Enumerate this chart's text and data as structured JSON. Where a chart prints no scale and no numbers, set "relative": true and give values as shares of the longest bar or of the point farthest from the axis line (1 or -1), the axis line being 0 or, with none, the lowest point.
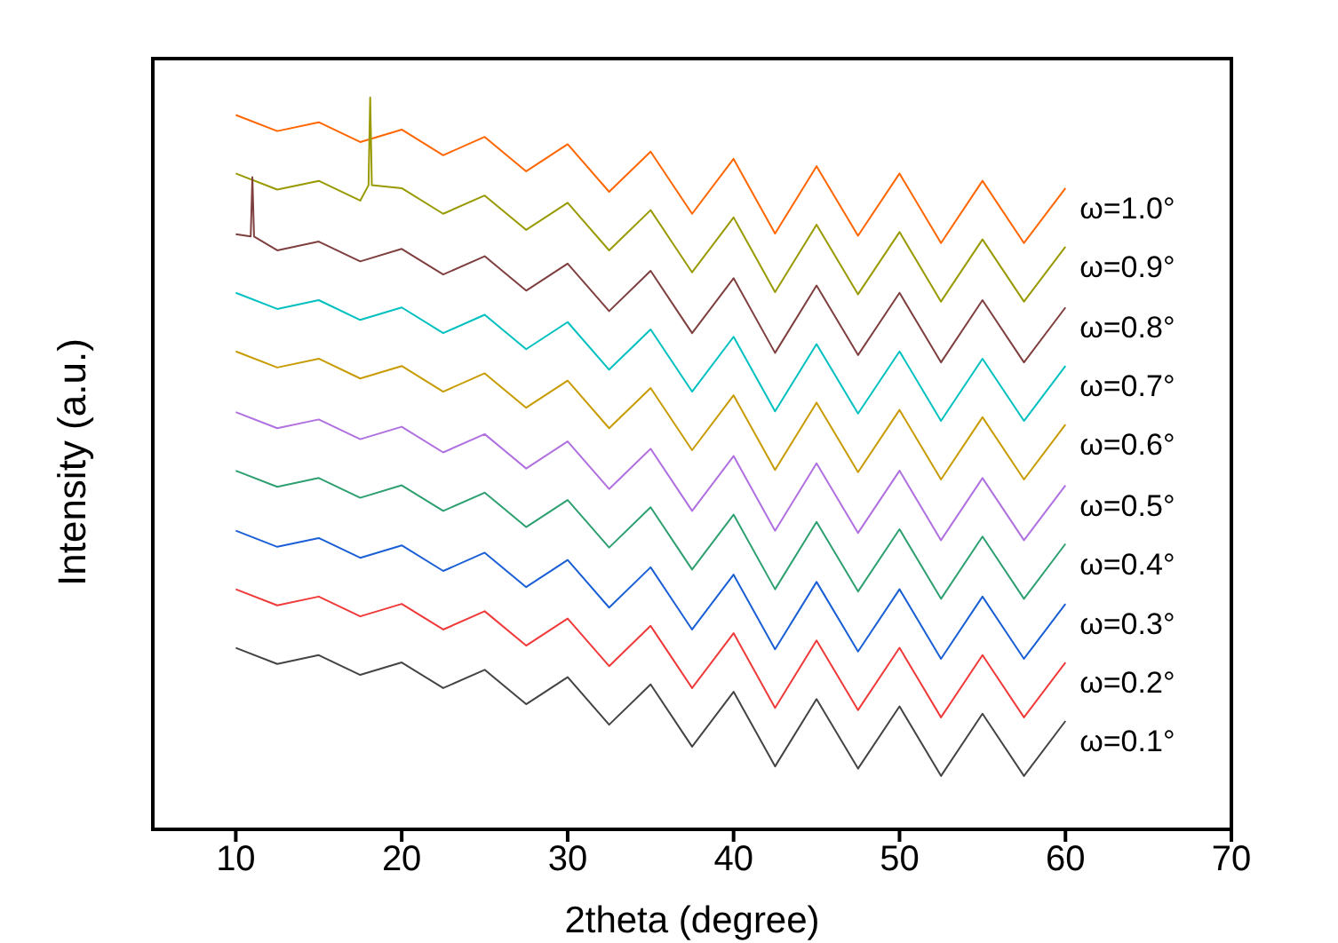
{
  "chart_data": {
    "type": "line",
    "xlabel": "2theta (degree)",
    "ylabel": "Intensity (a.u.)",
    "relative": true,
    "legend": false,
    "xlim": [
      5,
      70
    ],
    "xticks": [
      10,
      20,
      30,
      40,
      50,
      60,
      70
    ],
    "x": [
      10,
      12.5,
      15,
      17.5,
      20,
      22.5,
      25,
      27.5,
      30,
      32.5,
      35,
      37.5,
      40,
      42.5,
      45,
      47.5,
      50,
      52.5,
      55,
      57.5,
      60
    ],
    "series": [
      {
        "name": "ω=1.0°",
        "color": "#ff6600",
        "values": [
          0.976,
          0.954,
          0.966,
          0.939,
          0.956,
          0.921,
          0.946,
          0.899,
          0.936,
          0.871,
          0.926,
          0.841,
          0.916,
          0.814,
          0.906,
          0.811,
          0.896,
          0.801,
          0.886,
          0.801,
          0.876
        ]
      },
      {
        "name": "ω=0.9°",
        "color": "#999900",
        "x": [
          10,
          12.5,
          15,
          17.5,
          18,
          18.1,
          18.2,
          20,
          22.5,
          25,
          27.5,
          30,
          32.5,
          35,
          37.5,
          40,
          42.5,
          45,
          47.5,
          50,
          52.5,
          55,
          57.5,
          60
        ],
        "values": [
          0.896,
          0.874,
          0.886,
          0.859,
          0.88,
          1.0,
          0.88,
          0.876,
          0.841,
          0.866,
          0.819,
          0.856,
          0.791,
          0.846,
          0.761,
          0.836,
          0.734,
          0.826,
          0.731,
          0.816,
          0.721,
          0.806,
          0.721,
          0.796
        ]
      },
      {
        "name": "ω=0.8°",
        "color": "#7f3f3f",
        "x": [
          10,
          10.9,
          11,
          11.1,
          12.5,
          15,
          17.5,
          20,
          22.5,
          25,
          27.5,
          30,
          32.5,
          35,
          37.5,
          40,
          42.5,
          45,
          47.5,
          50,
          52.5,
          55,
          57.5,
          60
        ],
        "values": [
          0.813,
          0.81,
          0.891,
          0.81,
          0.791,
          0.803,
          0.776,
          0.793,
          0.758,
          0.783,
          0.736,
          0.773,
          0.708,
          0.763,
          0.678,
          0.753,
          0.651,
          0.743,
          0.648,
          0.733,
          0.638,
          0.723,
          0.638,
          0.713
        ]
      },
      {
        "name": "ω=0.7°",
        "color": "#00c0c0",
        "values": [
          0.733,
          0.711,
          0.723,
          0.696,
          0.713,
          0.678,
          0.703,
          0.656,
          0.693,
          0.628,
          0.683,
          0.598,
          0.673,
          0.571,
          0.663,
          0.568,
          0.653,
          0.558,
          0.643,
          0.558,
          0.633
        ]
      },
      {
        "name": "ω=0.6°",
        "color": "#c89b00",
        "values": [
          0.653,
          0.631,
          0.643,
          0.616,
          0.633,
          0.598,
          0.623,
          0.576,
          0.613,
          0.548,
          0.603,
          0.518,
          0.593,
          0.491,
          0.583,
          0.488,
          0.573,
          0.478,
          0.563,
          0.478,
          0.553
        ]
      },
      {
        "name": "ω=0.5°",
        "color": "#b070e0",
        "values": [
          0.57,
          0.548,
          0.56,
          0.533,
          0.55,
          0.515,
          0.54,
          0.493,
          0.53,
          0.465,
          0.52,
          0.435,
          0.51,
          0.408,
          0.5,
          0.405,
          0.49,
          0.395,
          0.48,
          0.395,
          0.47
        ]
      },
      {
        "name": "ω=0.4°",
        "color": "#2ea070",
        "values": [
          0.49,
          0.468,
          0.48,
          0.453,
          0.47,
          0.435,
          0.46,
          0.413,
          0.45,
          0.385,
          0.44,
          0.355,
          0.43,
          0.328,
          0.42,
          0.325,
          0.41,
          0.315,
          0.4,
          0.315,
          0.39
        ]
      },
      {
        "name": "ω=0.3°",
        "color": "#1a5fd6",
        "values": [
          0.408,
          0.386,
          0.398,
          0.371,
          0.388,
          0.353,
          0.378,
          0.331,
          0.368,
          0.303,
          0.358,
          0.273,
          0.348,
          0.246,
          0.338,
          0.243,
          0.328,
          0.233,
          0.318,
          0.233,
          0.308
        ]
      },
      {
        "name": "ω=0.2°",
        "color": "#f03a3a",
        "values": [
          0.328,
          0.306,
          0.318,
          0.291,
          0.308,
          0.273,
          0.298,
          0.251,
          0.288,
          0.223,
          0.278,
          0.193,
          0.268,
          0.166,
          0.258,
          0.163,
          0.248,
          0.153,
          0.238,
          0.153,
          0.228
        ]
      },
      {
        "name": "ω=0.1°",
        "color": "#444444",
        "values": [
          0.248,
          0.226,
          0.238,
          0.211,
          0.228,
          0.193,
          0.218,
          0.171,
          0.208,
          0.143,
          0.198,
          0.113,
          0.188,
          0.086,
          0.178,
          0.083,
          0.168,
          0.073,
          0.158,
          0.073,
          0.148
        ]
      }
    ]
  }
}
